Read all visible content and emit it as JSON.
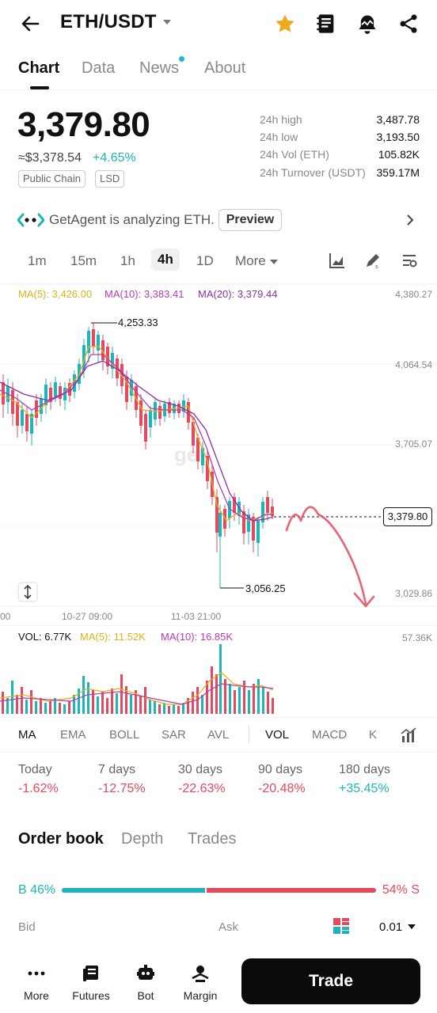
{
  "header": {
    "pair": "ETH/USDT"
  },
  "tabs": [
    "Chart",
    "Data",
    "News",
    "About"
  ],
  "ticker": {
    "price": "3,379.80",
    "usd_price": "≈$3,378.54",
    "change": "+4.65%",
    "tags": [
      "Public Chain",
      "LSD"
    ],
    "stats": [
      {
        "label": "24h high",
        "value": "3,487.78"
      },
      {
        "label": "24h low",
        "value": "3,193.50"
      },
      {
        "label": "24h Vol (ETH)",
        "value": "105.82K"
      },
      {
        "label": "24h Turnover (USDT)",
        "value": "359.17M"
      }
    ]
  },
  "agent": {
    "text": "GetAgent is analyzing ETH.",
    "button": "Preview"
  },
  "timeframes": [
    "1m",
    "15m",
    "1h",
    "4h",
    "1D",
    "More"
  ],
  "ma_legend": {
    "ma5": "MA(5): 3,426.00",
    "ma10": "MA(10): 3,383.41",
    "ma20": "MA(20): 3,379.44"
  },
  "price_axis": [
    "4,380.27",
    "4,064.54",
    "3,705.07",
    "3,029.86"
  ],
  "time_axis": [
    "00",
    "10-27 09:00",
    "11-03 21:00"
  ],
  "chart_annotations": {
    "high": "4,253.33",
    "low": "3,056.25",
    "last": "3,379.80"
  },
  "volume_legend": {
    "vol": "VOL: 6.77K",
    "ma5": "MA(5): 11.52K",
    "ma10": "MA(10): 16.85K",
    "max": "57.36K"
  },
  "indicator_tabs": [
    "MA",
    "EMA",
    "BOLL",
    "SAR",
    "AVL",
    "VOL",
    "MACD",
    "K"
  ],
  "performance": [
    {
      "label": "Today",
      "value": "-1.62%"
    },
    {
      "label": "7 days",
      "value": "-12.75%"
    },
    {
      "label": "30 days",
      "value": "-22.63%"
    },
    {
      "label": "90 days",
      "value": "-20.48%"
    },
    {
      "label": "180 days",
      "value": "+35.45%"
    }
  ],
  "orderbook": {
    "tabs": [
      "Order book",
      "Depth",
      "Trades"
    ],
    "buy_ratio": "B 46%",
    "sell_ratio": "54% S",
    "buy_fraction": 0.46,
    "bid_label": "Bid",
    "ask_label": "Ask",
    "precision": "0.01"
  },
  "bottom_nav": [
    "More",
    "Futures",
    "Bot",
    "Margin"
  ],
  "trade_button": "Trade",
  "colors": {
    "up": "#1db5b9",
    "down": "#e5495e",
    "ma5": "#e2b114",
    "ma10": "#b83ab6",
    "ma20": "#8a2fa8",
    "star": "#f0a81c"
  }
}
